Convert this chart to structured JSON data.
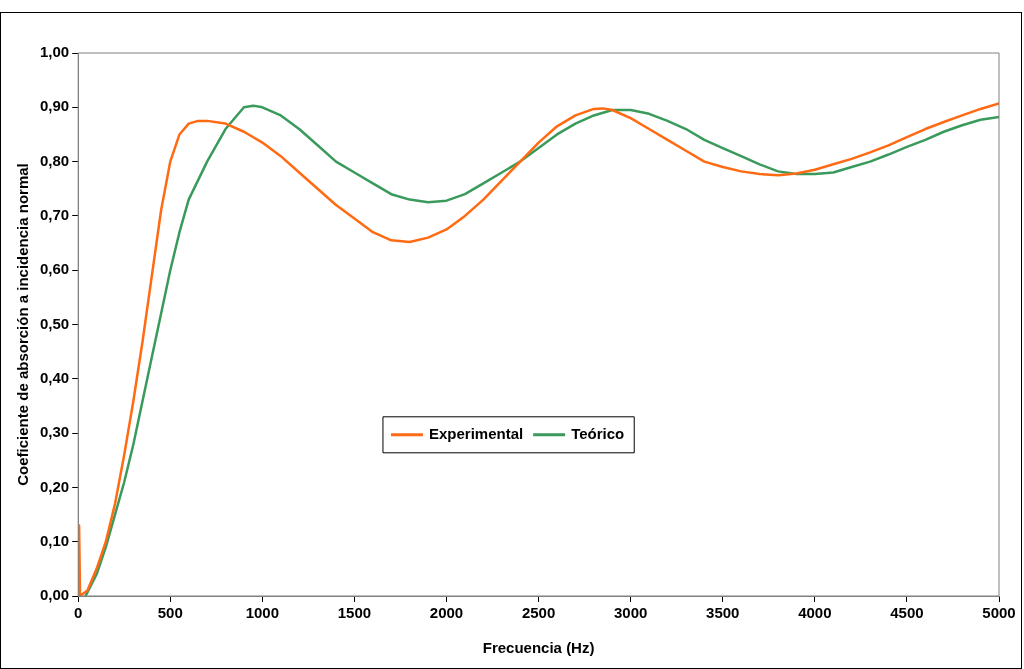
{
  "chart_data": {
    "type": "line",
    "xlabel": "Frecuencia (Hz)",
    "ylabel": "Coeficiente de absorción a incidencia normal",
    "xlim": [
      0,
      5000
    ],
    "xticks": [
      0,
      500,
      1000,
      1500,
      2000,
      2500,
      3000,
      3500,
      4000,
      4500,
      5000
    ],
    "ylim": [
      0,
      1
    ],
    "yticks": [
      {
        "value": 0,
        "label": "0,00"
      },
      {
        "value": 0.1,
        "label": "0,10"
      },
      {
        "value": 0.2,
        "label": "0,20"
      },
      {
        "value": 0.3,
        "label": "0,30"
      },
      {
        "value": 0.4,
        "label": "0,40"
      },
      {
        "value": 0.5,
        "label": "0,50"
      },
      {
        "value": 0.6,
        "label": "0,60"
      },
      {
        "value": 0.7,
        "label": "0,70"
      },
      {
        "value": 0.8,
        "label": "0,80"
      },
      {
        "value": 0.9,
        "label": "0,90"
      },
      {
        "value": 1,
        "label": "1,00"
      }
    ],
    "grid": false,
    "legend": "center",
    "marker": "none",
    "line_style": "solid",
    "series": [
      {
        "name": "Experimental",
        "color": "#ff6a13",
        "x": [
          0,
          5,
          10,
          50,
          100,
          150,
          200,
          250,
          300,
          350,
          400,
          450,
          500,
          550,
          600,
          650,
          700,
          800,
          900,
          1000,
          1100,
          1200,
          1300,
          1400,
          1500,
          1600,
          1700,
          1800,
          1900,
          2000,
          2100,
          2200,
          2300,
          2400,
          2500,
          2600,
          2700,
          2800,
          2850,
          2900,
          3000,
          3100,
          3200,
          3300,
          3400,
          3500,
          3600,
          3700,
          3800,
          3900,
          4000,
          4100,
          4200,
          4300,
          4400,
          4500,
          4600,
          4700,
          4800,
          4900,
          5000
        ],
        "values": [
          0,
          0.13,
          0,
          0.01,
          0.05,
          0.1,
          0.17,
          0.26,
          0.36,
          0.47,
          0.59,
          0.71,
          0.8,
          0.85,
          0.87,
          0.875,
          0.875,
          0.87,
          0.855,
          0.835,
          0.81,
          0.78,
          0.75,
          0.72,
          0.695,
          0.67,
          0.655,
          0.652,
          0.66,
          0.675,
          0.7,
          0.73,
          0.765,
          0.8,
          0.835,
          0.865,
          0.885,
          0.897,
          0.898,
          0.895,
          0.88,
          0.86,
          0.84,
          0.82,
          0.8,
          0.79,
          0.782,
          0.777,
          0.775,
          0.778,
          0.785,
          0.795,
          0.805,
          0.817,
          0.83,
          0.845,
          0.86,
          0.873,
          0.885,
          0.897,
          0.907
        ]
      },
      {
        "name": "Teórico",
        "color": "#3a9a5c",
        "x": [
          40,
          100,
          150,
          200,
          250,
          300,
          350,
          400,
          450,
          500,
          550,
          600,
          700,
          800,
          900,
          950,
          1000,
          1100,
          1200,
          1300,
          1400,
          1500,
          1600,
          1700,
          1800,
          1900,
          2000,
          2100,
          2200,
          2300,
          2400,
          2500,
          2600,
          2700,
          2800,
          2900,
          3000,
          3100,
          3200,
          3300,
          3400,
          3500,
          3600,
          3700,
          3800,
          3900,
          4000,
          4100,
          4200,
          4300,
          4400,
          4500,
          4600,
          4700,
          4800,
          4900,
          5000
        ],
        "values": [
          0,
          0.04,
          0.09,
          0.15,
          0.21,
          0.28,
          0.36,
          0.44,
          0.52,
          0.6,
          0.67,
          0.73,
          0.8,
          0.86,
          0.9,
          0.903,
          0.9,
          0.885,
          0.86,
          0.83,
          0.8,
          0.78,
          0.76,
          0.74,
          0.73,
          0.725,
          0.728,
          0.74,
          0.76,
          0.78,
          0.8,
          0.825,
          0.85,
          0.87,
          0.885,
          0.895,
          0.895,
          0.888,
          0.875,
          0.86,
          0.84,
          0.825,
          0.81,
          0.795,
          0.782,
          0.777,
          0.777,
          0.78,
          0.79,
          0.8,
          0.813,
          0.827,
          0.84,
          0.855,
          0.867,
          0.877,
          0.882
        ]
      }
    ]
  }
}
